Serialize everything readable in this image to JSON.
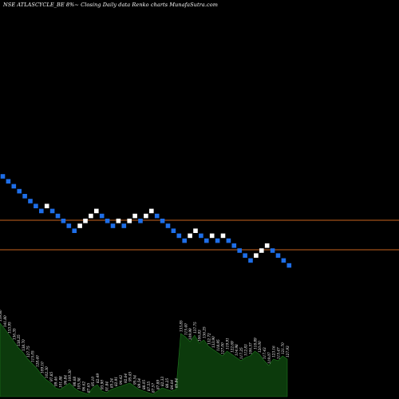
{
  "title": "NSE ATLASCYCLE_BE 8%~  Closing Daily data  Renko  charts MunafaSutra.com",
  "colors": {
    "background": "#000000",
    "up_brick": "#ffffff",
    "down_brick": "#1e6ee8",
    "reference_line": "#c8641e",
    "volume_fill": "#0c3a0c",
    "volume_line": "#1f7a1f"
  },
  "chart_data": {
    "type": "renko",
    "directions": [
      "down",
      "down",
      "down",
      "down",
      "down",
      "down",
      "down",
      "down",
      "up",
      "down",
      "down",
      "down",
      "down",
      "down",
      "up",
      "up",
      "up",
      "up",
      "down",
      "down",
      "down",
      "up",
      "down",
      "up",
      "up",
      "down",
      "up",
      "up",
      "down",
      "down",
      "down",
      "down",
      "down",
      "down",
      "up",
      "up",
      "down",
      "down",
      "up",
      "down",
      "up",
      "down",
      "down",
      "down",
      "down",
      "down",
      "up",
      "up",
      "up",
      "down",
      "down",
      "down",
      "down"
    ],
    "reference_lines": [
      "upper",
      "lower"
    ],
    "volume_labels": [
      "159.80",
      "141.80",
      "133.95",
      "136.35",
      "138.25",
      "138.70",
      "127.75",
      "115.05",
      "128.40",
      "109.10",
      "102.30",
      "97.85",
      "99.46",
      "101.88",
      "96.84",
      "100.30",
      "98.68",
      "105.58",
      "96.62",
      "87.65",
      "95.10",
      "82.49",
      "93.90",
      "91.84",
      "85.24",
      "82.91",
      "94.42",
      "92.64",
      "95.45",
      "95.54",
      "89.54",
      "88.05",
      "87.55",
      "87.57",
      "87.89",
      "82.33",
      "88.25",
      "84.64",
      "85.84",
      "133.85",
      "115.40",
      "109.99",
      "137.75",
      "106.83",
      "136.25",
      "132.72",
      "133.90",
      "118.95",
      "127.00",
      "119.91",
      "122.69",
      "114.98",
      "117.25",
      "112.83",
      "106.57",
      "118.89",
      "120.00",
      "117.43",
      "119.07",
      "123.16",
      "115.47",
      "121.70",
      "127.93"
    ]
  }
}
